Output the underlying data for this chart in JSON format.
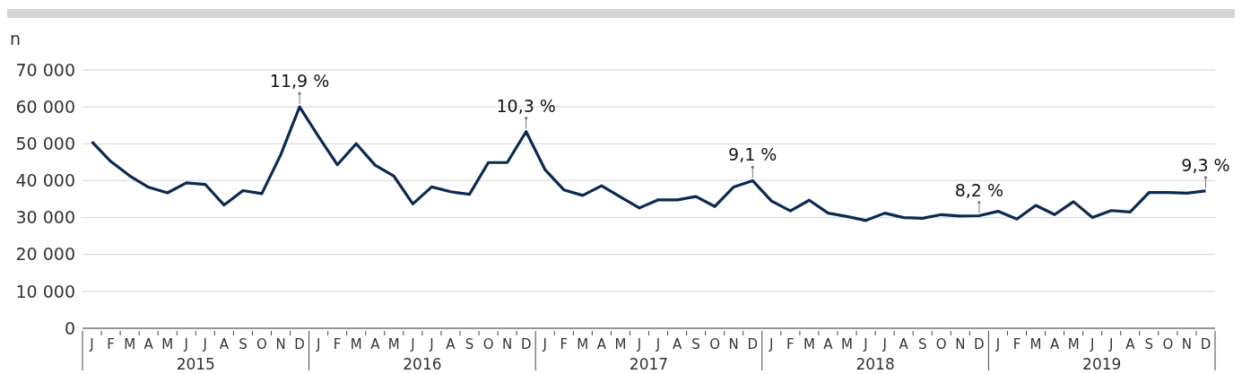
{
  "chart_data": {
    "type": "line",
    "ylabel": "n",
    "categories": [
      "J",
      "F",
      "M",
      "A",
      "M",
      "J",
      "J",
      "A",
      "S",
      "O",
      "N",
      "D",
      "J",
      "F",
      "M",
      "A",
      "M",
      "J",
      "J",
      "A",
      "S",
      "O",
      "N",
      "D",
      "J",
      "F",
      "M",
      "A",
      "M",
      "J",
      "J",
      "A",
      "S",
      "O",
      "N",
      "D",
      "J",
      "F",
      "M",
      "A",
      "M",
      "J",
      "J",
      "A",
      "S",
      "O",
      "N",
      "D",
      "J",
      "F",
      "M",
      "A",
      "M",
      "J",
      "J",
      "A",
      "S",
      "O",
      "N",
      "D"
    ],
    "series": [
      {
        "color": "#0b2a52",
        "values": [
          50500,
          45200,
          41300,
          38200,
          36700,
          39400,
          39000,
          33400,
          37300,
          36500,
          47000,
          60000,
          52000,
          44300,
          50000,
          44200,
          41200,
          33700,
          38300,
          37000,
          36300,
          44900,
          44900,
          53300,
          43000,
          37500,
          36000,
          38600,
          35600,
          32600,
          34800,
          34800,
          35700,
          33000,
          38300,
          40000,
          34500,
          31800,
          34700,
          31200,
          30300,
          29200,
          31200,
          30000,
          29800,
          30800,
          30400,
          30500,
          31700,
          29600,
          33300,
          30800,
          34300,
          30000,
          31900,
          31500,
          36800,
          36800,
          36600,
          37200
        ]
      }
    ],
    "ylim": [
      0,
      70000
    ],
    "yticks": [
      {
        "value": 0,
        "label": "0"
      },
      {
        "value": 10000,
        "label": "10 000"
      },
      {
        "value": 20000,
        "label": "20 000"
      },
      {
        "value": 30000,
        "label": "30 000"
      },
      {
        "value": 40000,
        "label": "40 000"
      },
      {
        "value": 50000,
        "label": "50 000"
      },
      {
        "value": 60000,
        "label": "60 000"
      },
      {
        "value": 70000,
        "label": "70 000"
      }
    ],
    "grid": "y",
    "legend": false,
    "marker": "none",
    "line_style": "solid",
    "annotations": [
      "11,9 %",
      "10,3 %",
      "9,1 %",
      "8,2 %",
      "9,3 %",
      "2015",
      "2016",
      "2017",
      "2018",
      "2019"
    ]
  }
}
